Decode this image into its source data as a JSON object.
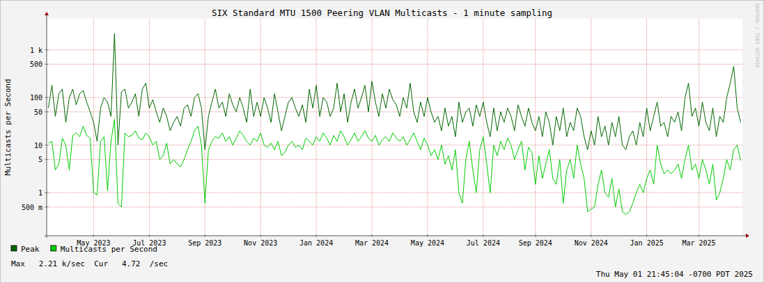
{
  "chart_data": {
    "type": "line",
    "title": "SIX Standard MTU 1500 Peering VLAN Multicasts - 1 minute sampling",
    "y_label": "Multicasts per Second",
    "log": "y",
    "grid": true,
    "legend": "bottom-left",
    "ylim": [
      0.125,
      4500
    ],
    "yticks": [
      {
        "value": 0.5,
        "label": "500 m"
      },
      1,
      5,
      10,
      50,
      100,
      500,
      {
        "value": 1000,
        "label": "1 k"
      }
    ],
    "categories": [
      null,
      null,
      null,
      null,
      null,
      null,
      null,
      null,
      null,
      null,
      null,
      null,
      null,
      "May 2023",
      null,
      null,
      null,
      null,
      null,
      null,
      null,
      null,
      null,
      null,
      null,
      null,
      null,
      null,
      null,
      "Jul 2023",
      null,
      null,
      null,
      null,
      null,
      null,
      null,
      null,
      null,
      null,
      null,
      null,
      null,
      null,
      null,
      "Sep 2023",
      null,
      null,
      null,
      null,
      null,
      null,
      null,
      null,
      null,
      null,
      null,
      null,
      null,
      null,
      null,
      "Nov 2023",
      null,
      null,
      null,
      null,
      null,
      null,
      null,
      null,
      null,
      null,
      null,
      null,
      null,
      null,
      null,
      "Jan 2024",
      null,
      null,
      null,
      null,
      null,
      null,
      null,
      null,
      null,
      null,
      null,
      null,
      null,
      null,
      null,
      "Mar 2024",
      null,
      null,
      null,
      null,
      null,
      null,
      null,
      null,
      null,
      null,
      null,
      null,
      null,
      null,
      null,
      "May 2024",
      null,
      null,
      null,
      null,
      null,
      null,
      null,
      null,
      null,
      null,
      null,
      null,
      null,
      null,
      null,
      "Jul 2024",
      null,
      null,
      null,
      null,
      null,
      null,
      null,
      null,
      null,
      null,
      null,
      null,
      null,
      null,
      "Sep 2024",
      null,
      null,
      null,
      null,
      null,
      null,
      null,
      null,
      null,
      null,
      null,
      null,
      null,
      null,
      null,
      "Nov 2024",
      null,
      null,
      null,
      null,
      null,
      null,
      null,
      null,
      null,
      null,
      null,
      null,
      null,
      null,
      null,
      "Jan 2025",
      null,
      null,
      null,
      null,
      null,
      null,
      null,
      null,
      null,
      null,
      null,
      null,
      null,
      null,
      "Mar 2025",
      null,
      null,
      null,
      null,
      null,
      null,
      null,
      null,
      null,
      null,
      null,
      null
    ],
    "series": [
      {
        "name": "Peak",
        "color": "#006600",
        "values": [
          60,
          180,
          40,
          120,
          150,
          30,
          100,
          150,
          70,
          120,
          140,
          80,
          50,
          30,
          12,
          60,
          100,
          80,
          40,
          2210,
          10,
          130,
          150,
          60,
          80,
          120,
          40,
          150,
          200,
          60,
          90,
          50,
          30,
          60,
          40,
          20,
          30,
          40,
          25,
          60,
          70,
          40,
          100,
          120,
          60,
          8,
          40,
          80,
          150,
          60,
          80,
          40,
          120,
          70,
          50,
          100,
          60,
          30,
          150,
          40,
          80,
          40,
          100,
          60,
          30,
          120,
          50,
          20,
          40,
          80,
          100,
          60,
          40,
          70,
          30,
          150,
          60,
          180,
          40,
          100,
          80,
          40,
          60,
          200,
          50,
          120,
          30,
          80,
          150,
          60,
          100,
          180,
          50,
          220,
          80,
          40,
          120,
          60,
          150,
          90,
          70,
          40,
          100,
          60,
          200,
          50,
          30,
          80,
          40,
          100,
          50,
          30,
          40,
          20,
          60,
          25,
          40,
          15,
          80,
          30,
          50,
          60,
          25,
          70,
          40,
          80,
          30,
          15,
          60,
          20,
          50,
          30,
          60,
          40,
          20,
          70,
          40,
          25,
          60,
          30,
          20,
          40,
          15,
          50,
          30,
          10,
          40,
          20,
          60,
          15,
          30,
          20,
          60,
          40,
          15,
          8,
          20,
          10,
          40,
          15,
          25,
          10,
          30,
          15,
          40,
          10,
          8,
          15,
          20,
          10,
          30,
          15,
          60,
          20,
          40,
          80,
          25,
          30,
          15,
          40,
          30,
          50,
          20,
          100,
          200,
          40,
          60,
          25,
          80,
          30,
          20,
          60,
          15,
          40,
          30,
          100,
          200,
          450,
          60,
          30
        ]
      },
      {
        "name": "Multicasts per Second",
        "color": "#00cc00",
        "values": [
          11,
          12,
          3,
          4,
          14,
          10,
          3,
          16,
          18,
          15,
          25,
          16,
          14,
          1,
          0.9,
          12,
          15,
          1.1,
          12,
          35,
          0.6,
          0.5,
          18,
          15,
          16,
          20,
          14,
          13,
          18,
          15,
          10,
          12,
          5,
          6,
          11,
          4,
          5,
          4,
          3.5,
          5,
          8,
          12,
          20,
          25,
          10,
          0.6,
          8,
          12,
          15,
          14,
          18,
          12,
          15,
          10,
          14,
          20,
          16,
          12,
          10,
          14,
          12,
          18,
          10,
          9,
          11,
          8,
          12,
          6,
          7,
          10,
          12,
          9,
          10,
          8,
          14,
          12,
          10,
          15,
          12,
          18,
          14,
          10,
          16,
          12,
          20,
          15,
          10,
          13,
          18,
          12,
          15,
          20,
          14,
          12,
          16,
          10,
          13,
          15,
          12,
          18,
          14,
          12,
          15,
          10,
          13,
          18,
          12,
          8,
          14,
          10,
          6,
          8,
          5,
          10,
          4,
          6,
          3,
          8,
          1,
          0.6,
          5,
          12,
          3,
          1,
          8,
          15,
          4,
          1,
          10,
          6,
          12,
          8,
          14,
          10,
          5,
          8,
          12,
          3,
          9,
          7,
          1.5,
          6,
          2,
          4,
          8,
          2,
          1.5,
          5,
          0.6,
          3,
          5,
          2,
          10,
          4,
          2,
          0.4,
          0.45,
          0.5,
          1.5,
          3,
          1,
          0.8,
          2,
          0.5,
          1.2,
          0.4,
          0.35,
          0.4,
          0.6,
          1,
          1.5,
          1,
          2,
          3,
          1.5,
          10,
          4,
          2.5,
          3,
          2.5,
          3,
          4,
          2,
          5,
          10,
          3,
          4,
          2,
          5,
          3,
          1.5,
          4,
          0.7,
          1,
          2,
          5,
          3,
          8,
          10,
          4.72
        ]
      }
    ],
    "annotations": [
      "Max   2.21 k/sec  Cur   4.72  /sec",
      "Thu May 01 21:45:04 -0700 PDT 2025",
      "RRDTOOL / TOBI OETIKER"
    ]
  }
}
